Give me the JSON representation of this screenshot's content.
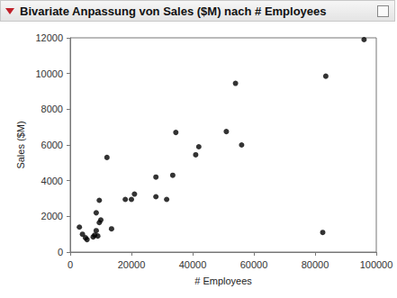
{
  "chart_data": {
    "type": "scatter",
    "title": "Bivariate Anpassung von Sales ($M) nach # Employees",
    "x_label": "# Employees",
    "y_label": "Sales ($M)",
    "x": [
      96000,
      83500,
      82500,
      54000,
      51000,
      56000,
      42000,
      41000,
      34500,
      33500,
      28000,
      28000,
      31500,
      21000,
      20000,
      18000,
      12000,
      13500,
      10000,
      9500,
      9500,
      8500,
      8500,
      8000,
      9000,
      3000,
      4000,
      5000,
      5500,
      7500
    ],
    "values": [
      11900,
      9850,
      1100,
      9450,
      6750,
      6000,
      5900,
      5450,
      6700,
      4300,
      4200,
      3100,
      2950,
      3250,
      2950,
      2950,
      5300,
      1300,
      1800,
      1650,
      2900,
      2200,
      1200,
      950,
      900,
      1400,
      1000,
      800,
      700,
      850
    ],
    "color": "#000000",
    "marker": "circle",
    "xlim": [
      0,
      100000
    ],
    "xticks": [
      0,
      20000,
      40000,
      60000,
      80000,
      100000
    ],
    "ylim": [
      0,
      12000
    ],
    "yticks": [
      0,
      2000,
      4000,
      6000,
      8000,
      10000,
      12000
    ],
    "grid": false
  }
}
